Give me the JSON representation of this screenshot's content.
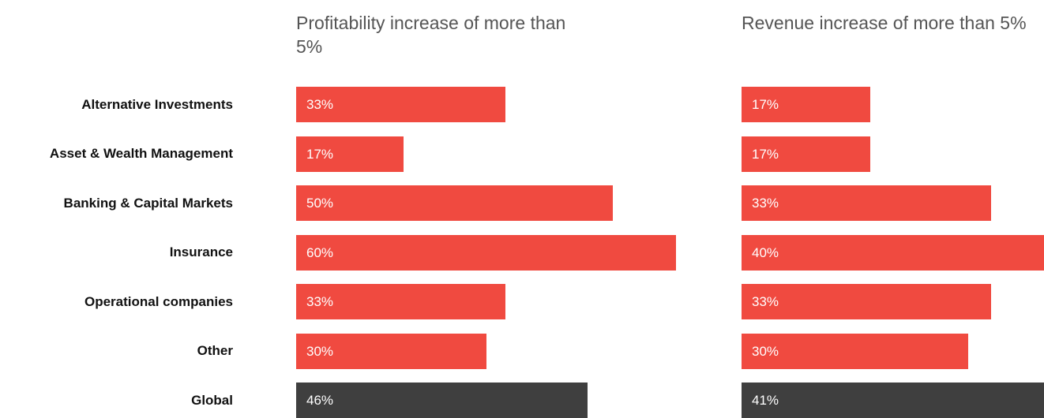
{
  "colors": {
    "bar": "#f04a40",
    "highlight": "#3f3f3f"
  },
  "chart_data": [
    {
      "type": "bar",
      "orientation": "horizontal",
      "title": "Profitability increase of more than 5%",
      "categories": [
        "Alternative Investments",
        "Asset & Wealth Management",
        "Banking & Capital Markets",
        "Insurance",
        "Operational companies",
        "Other",
        "Global"
      ],
      "values": [
        33,
        17,
        50,
        60,
        33,
        30,
        46
      ],
      "value_labels": [
        "33%",
        "17%",
        "50%",
        "60%",
        "33%",
        "30%",
        "46%"
      ],
      "highlight_category": "Global",
      "xlim": [
        0,
        60
      ]
    },
    {
      "type": "bar",
      "orientation": "horizontal",
      "title": "Revenue increase of more than 5%",
      "categories": [
        "Alternative Investments",
        "Asset & Wealth Management",
        "Banking & Capital Markets",
        "Insurance",
        "Operational companies",
        "Other",
        "Global"
      ],
      "values": [
        17,
        17,
        33,
        40,
        33,
        30,
        41
      ],
      "value_labels": [
        "17%",
        "17%",
        "33%",
        "40%",
        "33%",
        "30%",
        "41%"
      ],
      "highlight_category": "Global",
      "xlim": [
        0,
        40
      ]
    }
  ]
}
